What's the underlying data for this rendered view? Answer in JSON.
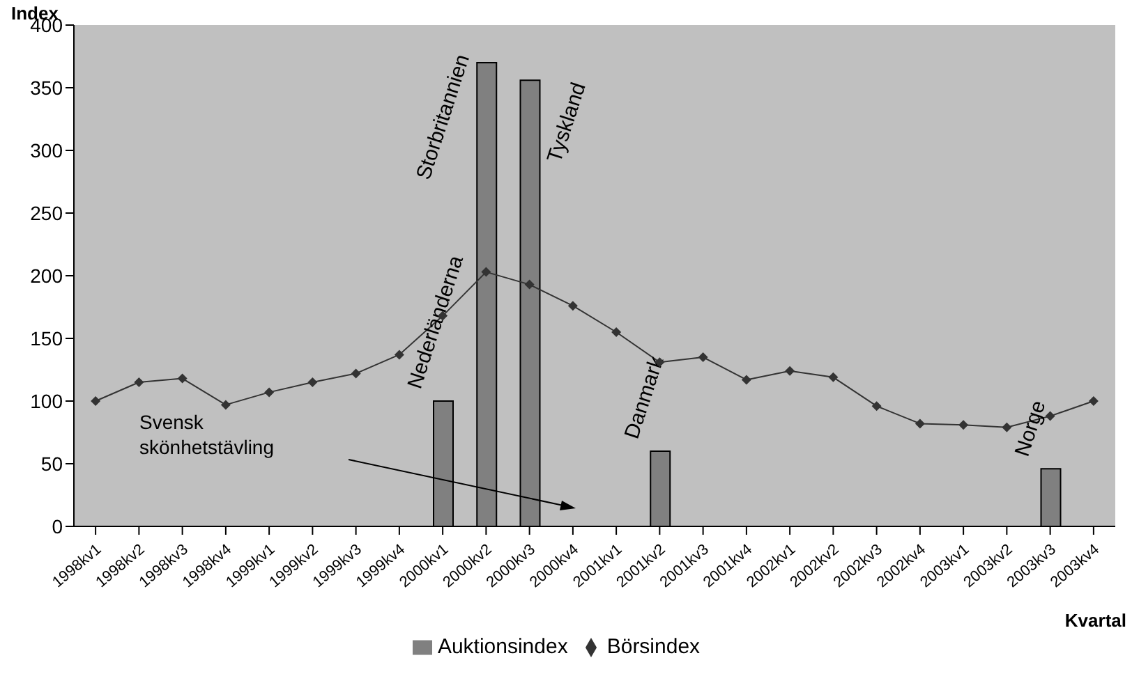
{
  "chart_data": {
    "type": "bar",
    "ylabel": "Index",
    "xlabel": "Kvartal",
    "categories": [
      "1998kv1",
      "1998kv2",
      "1998kv3",
      "1998kv4",
      "1999kv1",
      "1999kv2",
      "1999kv3",
      "1999kv4",
      "2000kv1",
      "2000kv2",
      "2000kv3",
      "2000kv4",
      "2001kv1",
      "2001kv2",
      "2001kv3",
      "2001kv4",
      "2002kv1",
      "2002kv2",
      "2002kv3",
      "2002kv4",
      "2003kv1",
      "2003kv2",
      "2003kv3",
      "2003kv4"
    ],
    "series": [
      {
        "name": "Auktionsindex",
        "color": "#808080",
        "values": [
          null,
          null,
          null,
          null,
          null,
          null,
          null,
          null,
          100,
          370,
          356,
          null,
          null,
          60,
          null,
          null,
          null,
          null,
          null,
          null,
          null,
          null,
          46,
          null
        ]
      },
      {
        "name": "Börsindex",
        "type": "line",
        "color": "#333333",
        "marker": "diamond",
        "values": [
          100,
          115,
          118,
          97,
          107,
          115,
          122,
          137,
          168,
          203,
          193,
          176,
          155,
          131,
          135,
          117,
          124,
          119,
          96,
          82,
          81,
          79,
          88,
          100
        ]
      }
    ],
    "ylim": [
      0,
      400
    ],
    "yticks": [
      0,
      50,
      100,
      150,
      200,
      250,
      300,
      350,
      400
    ],
    "grid": false,
    "legend": "bottom",
    "annotations": [
      {
        "text": "Nederländerna",
        "x": "2000kv1",
        "y": 100
      },
      {
        "text": "Storbritannien",
        "x": "2000kv2",
        "y": 370
      },
      {
        "text": "Tyskland",
        "x": "2000kv3",
        "y": 356
      },
      {
        "text": "Danmark",
        "x": "2001kv2",
        "y": 60
      },
      {
        "text": "Norge",
        "x": "2003kv3",
        "y": 46
      },
      "Svensk skönhetstävling"
    ]
  }
}
